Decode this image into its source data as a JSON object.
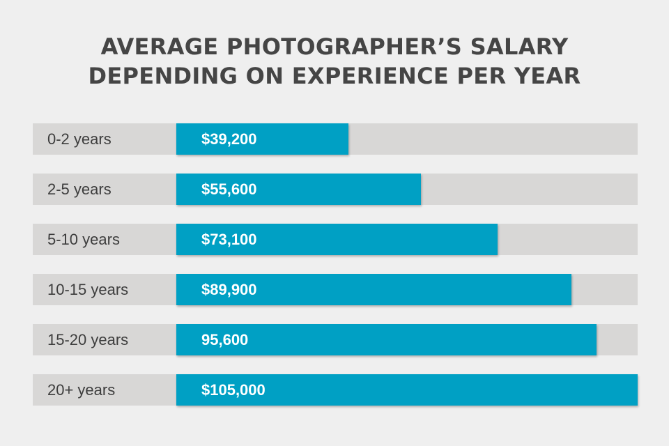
{
  "title": {
    "line1": "AVERAGE PHOTOGRAPHER’S SALARY",
    "line2": "DEPENDING ON EXPERIENCE PER YEAR"
  },
  "colors": {
    "background": "#efefef",
    "row_background": "#d8d7d6",
    "bar": "#00a0c4",
    "label_text": "#3d3d3d",
    "bar_text": "#ffffff",
    "title_text": "#454545"
  },
  "chart_data": {
    "type": "bar",
    "orientation": "horizontal",
    "title": "AVERAGE PHOTOGRAPHER’S SALARY DEPENDING ON EXPERIENCE PER YEAR",
    "categories": [
      "0-2 years",
      "2-5 years",
      "5-10 years",
      "10-15 years",
      "15-20 years",
      "20+ years"
    ],
    "values": [
      39200,
      55600,
      73100,
      89900,
      95600,
      105000
    ],
    "data_labels": [
      "$39,200",
      "$55,600",
      "$73,100",
      "$89,900",
      "95,600",
      "$105,000"
    ],
    "xlim": [
      0,
      105000
    ],
    "xlabel": "",
    "ylabel": "",
    "grid": false,
    "legend": "none"
  }
}
